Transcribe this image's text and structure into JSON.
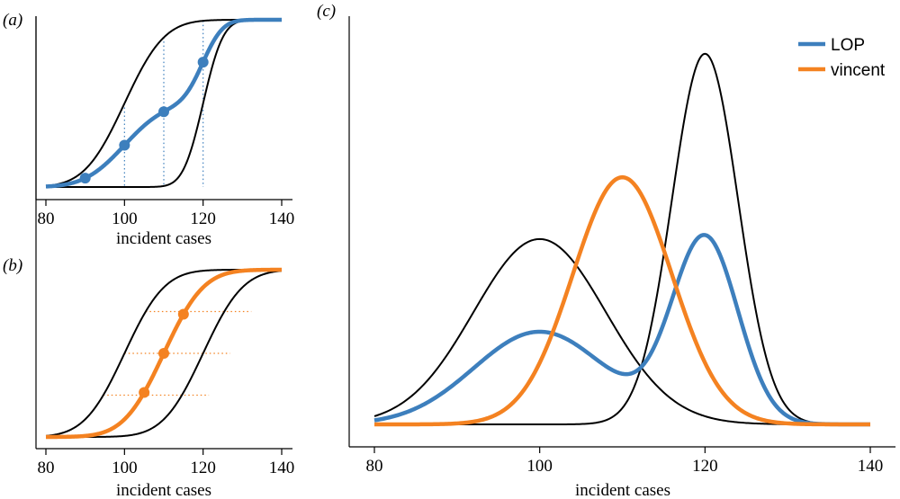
{
  "colors": {
    "lop": "#3d7fbd",
    "vincent": "#f48221",
    "component": "#000000"
  },
  "chart_data": [
    {
      "panel": "(a)",
      "type": "line",
      "title": "",
      "xlabel": "incident cases",
      "ylabel": "",
      "xlim": [
        80,
        140
      ],
      "ylim": [
        0,
        1
      ],
      "xticks": [
        "80",
        "100",
        "120",
        "140"
      ],
      "components": [
        {
          "kind": "normal-cdf",
          "mean": 100,
          "sd": 8
        },
        {
          "kind": "normal-cdf",
          "mean": 120,
          "sd": 4
        }
      ],
      "series": [
        {
          "style": "lop",
          "kind": "mixture-cdf",
          "marker_x": [
            90,
            100,
            110,
            120
          ]
        }
      ],
      "guides": {
        "orientation": "vertical",
        "x": [
          100,
          110,
          120
        ]
      }
    },
    {
      "panel": "(b)",
      "type": "line",
      "title": "",
      "xlabel": "incident cases",
      "ylabel": "",
      "xlim": [
        80,
        140
      ],
      "ylim": [
        0,
        1
      ],
      "xticks": [
        "80",
        "100",
        "120",
        "140"
      ],
      "components": [
        {
          "kind": "normal-cdf",
          "mean": 100,
          "sd": 8
        },
        {
          "kind": "normal-cdf",
          "mean": 120,
          "sd": 8
        }
      ],
      "series": [
        {
          "style": "vincent",
          "kind": "normal-cdf",
          "mean": 110,
          "sd": 8,
          "marker_x": [
            105,
            110,
            115
          ]
        }
      ],
      "guides": {
        "orientation": "horizontal",
        "y": [
          0.25,
          0.5,
          0.75
        ]
      }
    },
    {
      "panel": "(c)",
      "type": "line",
      "title": "",
      "xlabel": "incident cases",
      "ylabel": "",
      "xlim": [
        80,
        140
      ],
      "ylim": [
        0,
        0.105
      ],
      "xticks": [
        "80",
        "100",
        "120",
        "140"
      ],
      "components": [
        {
          "kind": "normal-pdf",
          "mean": 100,
          "sd": 8
        },
        {
          "kind": "normal-pdf",
          "mean": 120,
          "sd": 4
        }
      ],
      "series": [
        {
          "name": "LOP",
          "style": "lop",
          "kind": "mixture-pdf"
        },
        {
          "name": "vincent",
          "style": "vincent",
          "kind": "normal-pdf",
          "mean": 110,
          "sd": 6
        }
      ],
      "legend": "top-right"
    }
  ]
}
